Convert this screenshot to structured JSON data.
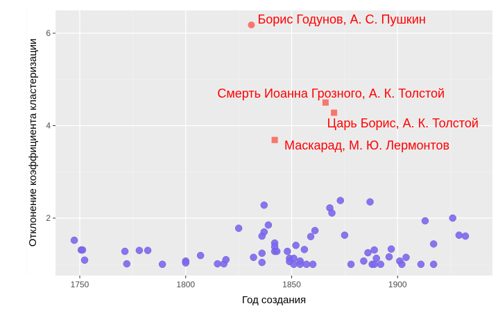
{
  "chart_data": {
    "type": "scatter",
    "title": "",
    "xlabel": "Год создания",
    "ylabel": "Отклонение коэффициента кластеризации",
    "xlim": [
      1738,
      1943
    ],
    "ylim": [
      0.76,
      6.5
    ],
    "xticks": [
      1750,
      1800,
      1850,
      1900
    ],
    "yticks": [
      2,
      4,
      6
    ],
    "grid": true,
    "colors": {
      "regular": "#7b68ee",
      "highlight": "#f8766d",
      "label": "#ff0000",
      "panel": "#ebebeb"
    },
    "points": [
      [
        1747.4,
        1.52
      ],
      [
        1750.7,
        1.31
      ],
      [
        1751.3,
        1.31
      ],
      [
        1752.3,
        1.09
      ],
      [
        1771.3,
        1.28
      ],
      [
        1772.2,
        1.01
      ],
      [
        1778.1,
        1.3
      ],
      [
        1782.1,
        1.3
      ],
      [
        1789,
        1.0
      ],
      [
        1800,
        1.07
      ],
      [
        1800,
        1.03
      ],
      [
        1807,
        1.19
      ],
      [
        1815,
        1.01
      ],
      [
        1818,
        1.01
      ],
      [
        1819,
        1.1
      ],
      [
        1825,
        1.78
      ],
      [
        1832,
        1.15
      ],
      [
        1836,
        1.24
      ],
      [
        1836,
        1.04
      ],
      [
        1836,
        1.61
      ],
      [
        1837,
        1.7
      ],
      [
        1837,
        2.28
      ],
      [
        1839,
        1.85
      ],
      [
        1842,
        1.46
      ],
      [
        1842,
        1.38
      ],
      [
        1842,
        1.28
      ],
      [
        1843,
        1.28
      ],
      [
        1848,
        1.28
      ],
      [
        1849,
        1.13
      ],
      [
        1849,
        1.06
      ],
      [
        1851,
        1.13
      ],
      [
        1851,
        1.0
      ],
      [
        1854,
        1.07
      ],
      [
        1854,
        1.0
      ],
      [
        1857,
        1.0
      ],
      [
        1860,
        1.0
      ],
      [
        1852,
        1.41
      ],
      [
        1856,
        1.32
      ],
      [
        1859,
        1.6
      ],
      [
        1861,
        1.73
      ],
      [
        1868,
        2.22
      ],
      [
        1869,
        2.11
      ],
      [
        1873,
        2.38
      ],
      [
        1875,
        1.63
      ],
      [
        1878,
        1.0
      ],
      [
        1884,
        1.07
      ],
      [
        1886,
        1.25
      ],
      [
        1887,
        2.35
      ],
      [
        1889,
        1.31
      ],
      [
        1890,
        1.13
      ],
      [
        1888,
        1.0
      ],
      [
        1889,
        1.0
      ],
      [
        1892,
        1.0
      ],
      [
        1896,
        1.16
      ],
      [
        1897,
        1.33
      ],
      [
        1901,
        1.07
      ],
      [
        1902,
        1.0
      ],
      [
        1904,
        1.15
      ],
      [
        1911,
        1.0
      ],
      [
        1913,
        1.94
      ],
      [
        1917,
        1.44
      ],
      [
        1917,
        1.0
      ],
      [
        1926,
        2.0
      ],
      [
        1929,
        1.63
      ],
      [
        1932,
        1.61
      ]
    ],
    "highlights": [
      {
        "x": 1831,
        "y": 6.18,
        "shape": "circle",
        "label": "Борис Годунов, А. С. Пушкин"
      },
      {
        "x": 1866,
        "y": 4.5,
        "shape": "square",
        "label": "Смерть Иоанна Грозного, А. К. Толстой"
      },
      {
        "x": 1870,
        "y": 4.28,
        "shape": "square",
        "label": "Царь Борис, А. К. Толстой"
      },
      {
        "x": 1842,
        "y": 3.69,
        "shape": "square",
        "label": "Маскарад, М. Ю. Лермонтов"
      }
    ]
  }
}
